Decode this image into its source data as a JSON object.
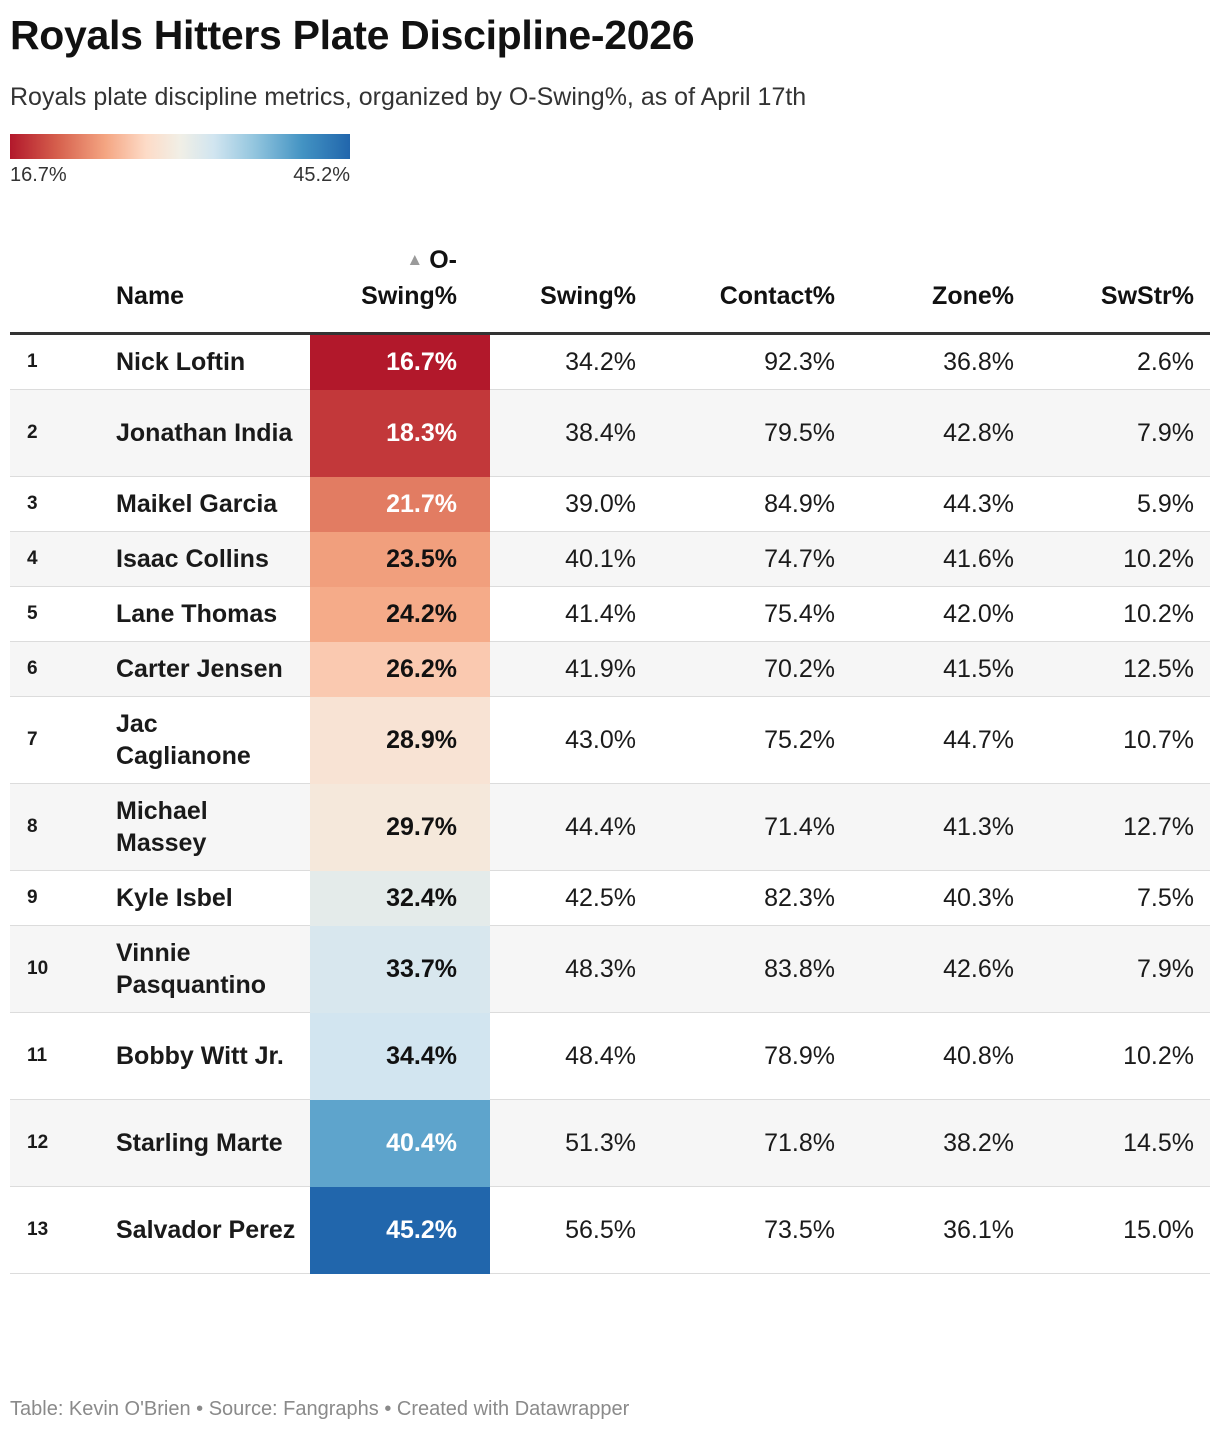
{
  "title": "Royals Hitters Plate Discipline-2026",
  "subtitle": "Royals plate discipline metrics, organized by O-Swing%, as of April 17th",
  "legend": {
    "min_label": "16.7%",
    "max_label": "45.2%",
    "min_value": 16.7,
    "max_value": 45.2,
    "colors": [
      "#b2182b",
      "#d6604d",
      "#f4a582",
      "#fddbc7",
      "#f1efe6",
      "#d1e5f0",
      "#92c5de",
      "#4393c3",
      "#2166ac"
    ]
  },
  "sort_icon": "sort-ascending-icon",
  "footer": "Table: Kevin O'Brien • Source: Fangraphs • Created with Datawrapper",
  "chart_data": {
    "type": "table",
    "title": "Royals Hitters Plate Discipline-2026",
    "sorted_by": "O-Swing%",
    "sort_order": "ascending",
    "columns": {
      "name": "Name",
      "oswing_line1": "O-",
      "oswing_line2": "Swing%",
      "swing": "Swing%",
      "contact": "Contact%",
      "zone": "Zone%",
      "swstr": "SwStr%"
    },
    "rows": [
      {
        "rank": "1",
        "name": "Nick Loftin",
        "oswing": "16.7%",
        "oswing_value": 16.7,
        "swing": "34.2%",
        "contact": "92.3%",
        "zone": "36.8%",
        "swstr": "2.6%"
      },
      {
        "rank": "2",
        "name": "Jonathan India",
        "oswing": "18.3%",
        "oswing_value": 18.3,
        "swing": "38.4%",
        "contact": "79.5%",
        "zone": "42.8%",
        "swstr": "7.9%"
      },
      {
        "rank": "3",
        "name": "Maikel Garcia",
        "oswing": "21.7%",
        "oswing_value": 21.7,
        "swing": "39.0%",
        "contact": "84.9%",
        "zone": "44.3%",
        "swstr": "5.9%"
      },
      {
        "rank": "4",
        "name": "Isaac Collins",
        "oswing": "23.5%",
        "oswing_value": 23.5,
        "swing": "40.1%",
        "contact": "74.7%",
        "zone": "41.6%",
        "swstr": "10.2%"
      },
      {
        "rank": "5",
        "name": "Lane Thomas",
        "oswing": "24.2%",
        "oswing_value": 24.2,
        "swing": "41.4%",
        "contact": "75.4%",
        "zone": "42.0%",
        "swstr": "10.2%"
      },
      {
        "rank": "6",
        "name": "Carter Jensen",
        "oswing": "26.2%",
        "oswing_value": 26.2,
        "swing": "41.9%",
        "contact": "70.2%",
        "zone": "41.5%",
        "swstr": "12.5%"
      },
      {
        "rank": "7",
        "name": "Jac Caglianone",
        "oswing": "28.9%",
        "oswing_value": 28.9,
        "swing": "43.0%",
        "contact": "75.2%",
        "zone": "44.7%",
        "swstr": "10.7%"
      },
      {
        "rank": "8",
        "name": "Michael Massey",
        "oswing": "29.7%",
        "oswing_value": 29.7,
        "swing": "44.4%",
        "contact": "71.4%",
        "zone": "41.3%",
        "swstr": "12.7%"
      },
      {
        "rank": "9",
        "name": "Kyle Isbel",
        "oswing": "32.4%",
        "oswing_value": 32.4,
        "swing": "42.5%",
        "contact": "82.3%",
        "zone": "40.3%",
        "swstr": "7.5%"
      },
      {
        "rank": "10",
        "name": "Vinnie Pasquantino",
        "oswing": "33.7%",
        "oswing_value": 33.7,
        "swing": "48.3%",
        "contact": "83.8%",
        "zone": "42.6%",
        "swstr": "7.9%"
      },
      {
        "rank": "11",
        "name": "Bobby Witt Jr.",
        "oswing": "34.4%",
        "oswing_value": 34.4,
        "swing": "48.4%",
        "contact": "78.9%",
        "zone": "40.8%",
        "swstr": "10.2%"
      },
      {
        "rank": "12",
        "name": "Starling Marte",
        "oswing": "40.4%",
        "oswing_value": 40.4,
        "swing": "51.3%",
        "contact": "71.8%",
        "zone": "38.2%",
        "swstr": "14.5%"
      },
      {
        "rank": "13",
        "name": "Salvador Perez",
        "oswing": "45.2%",
        "oswing_value": 45.2,
        "swing": "56.5%",
        "contact": "73.5%",
        "zone": "36.1%",
        "swstr": "15.0%"
      }
    ]
  }
}
